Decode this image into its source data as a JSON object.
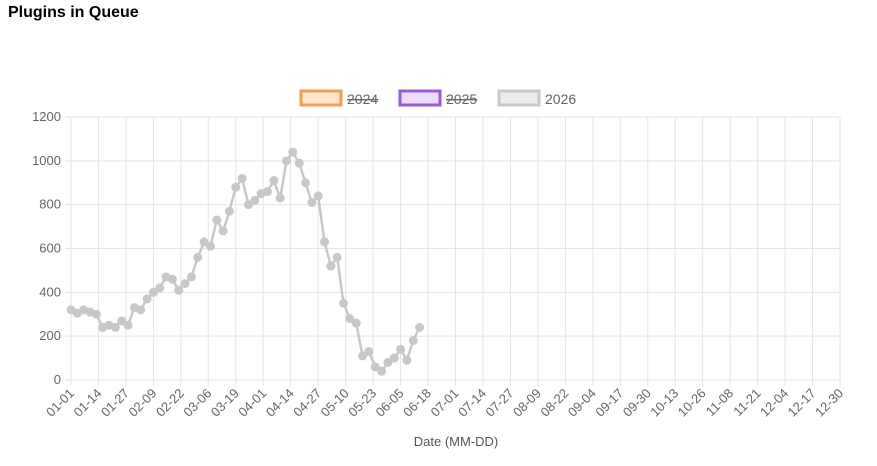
{
  "page": {
    "title": "Plugins in Queue"
  },
  "chart_data": {
    "type": "line",
    "title": "",
    "xlabel": "Date (MM-DD)",
    "ylabel": "",
    "ylim": [
      0,
      1200
    ],
    "yticks": [
      0,
      200,
      400,
      600,
      800,
      1000,
      1200
    ],
    "x_tick_labels": [
      "01-01",
      "01-14",
      "01-27",
      "02-09",
      "02-22",
      "03-06",
      "03-19",
      "04-01",
      "04-14",
      "04-27",
      "05-10",
      "05-23",
      "06-05",
      "06-18",
      "07-01",
      "07-14",
      "07-27",
      "08-09",
      "08-22",
      "09-04",
      "09-17",
      "09-30",
      "10-13",
      "10-26",
      "11-08",
      "11-21",
      "12-04",
      "12-17",
      "12-30"
    ],
    "grid": true,
    "legend_position": "top",
    "series": [
      {
        "name": "2024",
        "hidden": true,
        "color": "#f0a04b",
        "fill": "#fde6cc",
        "values": []
      },
      {
        "name": "2025",
        "hidden": true,
        "color": "#9b59d9",
        "fill": "#ecdcfa",
        "values": []
      },
      {
        "name": "2026",
        "hidden": false,
        "color": "#c8c8c8",
        "fill": "#ececec",
        "x": [
          "01-01",
          "01-04",
          "01-07",
          "01-10",
          "01-13",
          "01-16",
          "01-19",
          "01-22",
          "01-25",
          "01-28",
          "01-31",
          "02-03",
          "02-06",
          "02-09",
          "02-12",
          "02-15",
          "02-18",
          "02-21",
          "02-24",
          "02-27",
          "03-02",
          "03-05",
          "03-08",
          "03-11",
          "03-14",
          "03-17",
          "03-20",
          "03-23",
          "03-26",
          "03-29",
          "04-01",
          "04-04",
          "04-07",
          "04-10",
          "04-13",
          "04-16",
          "04-19",
          "04-22",
          "04-25",
          "04-28",
          "05-01",
          "05-04",
          "05-07",
          "05-10",
          "05-13",
          "05-16",
          "05-19",
          "05-22",
          "05-25",
          "05-28",
          "05-31",
          "06-03",
          "06-06",
          "06-09",
          "06-12",
          "06-15"
        ],
        "values": [
          320,
          305,
          320,
          310,
          300,
          240,
          250,
          240,
          270,
          250,
          330,
          320,
          370,
          400,
          420,
          470,
          460,
          410,
          440,
          470,
          560,
          630,
          610,
          730,
          680,
          770,
          880,
          920,
          800,
          820,
          850,
          860,
          910,
          830,
          1000,
          1040,
          990,
          900,
          810,
          840,
          630,
          520,
          560,
          350,
          280,
          260,
          110,
          130,
          60,
          40,
          80,
          100,
          140,
          90,
          180,
          240
        ]
      }
    ]
  }
}
